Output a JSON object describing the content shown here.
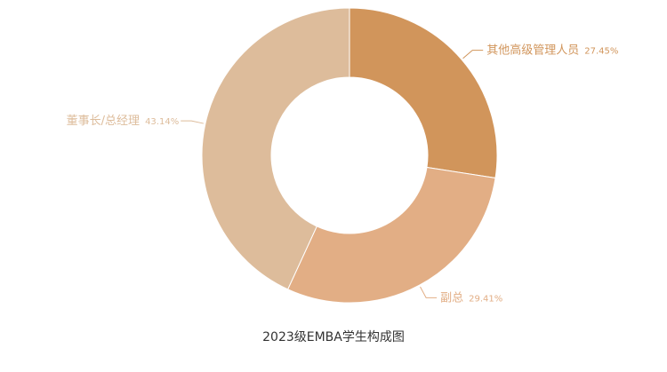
{
  "chart_data": {
    "type": "pie",
    "subtype": "donut",
    "title": "2023级EMBA学生构成图",
    "slices": [
      {
        "label": "其他高级管理人员",
        "value": 27.45,
        "value_text": "27.45%",
        "color": "#D1955B"
      },
      {
        "label": "副总",
        "value": 29.41,
        "value_text": "29.41%",
        "color": "#E2AE85"
      },
      {
        "label": "董事长/总经理",
        "value": 43.14,
        "value_text": "43.14%",
        "color": "#DDBC9B"
      }
    ],
    "legend": "none",
    "label_color": "#D9A679"
  }
}
